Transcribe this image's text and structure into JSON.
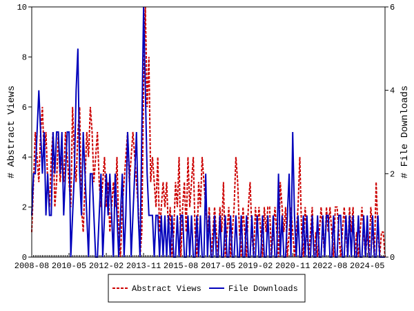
{
  "chart_data": {
    "type": "line",
    "y_label": "# Abstract Views",
    "y2_label": "# File Downloads",
    "x": [
      "2008-08",
      "2008-09",
      "2008-10",
      "2008-11",
      "2008-12",
      "2009-01",
      "2009-02",
      "2009-03",
      "2009-04",
      "2009-05",
      "2009-06",
      "2009-07",
      "2009-08",
      "2009-09",
      "2009-10",
      "2009-11",
      "2009-12",
      "2010-01",
      "2010-02",
      "2010-03",
      "2010-04",
      "2010-05",
      "2010-06",
      "2010-07",
      "2010-08",
      "2010-09",
      "2010-10",
      "2010-11",
      "2010-12",
      "2011-01",
      "2011-02",
      "2011-03",
      "2011-04",
      "2011-05",
      "2011-06",
      "2011-07",
      "2011-08",
      "2011-09",
      "2011-10",
      "2011-11",
      "2011-12",
      "2012-01",
      "2012-02",
      "2012-03",
      "2012-04",
      "2012-05",
      "2012-06",
      "2012-07",
      "2012-08",
      "2012-09",
      "2012-10",
      "2012-11",
      "2012-12",
      "2013-01",
      "2013-02",
      "2013-03",
      "2013-04",
      "2013-05",
      "2013-06",
      "2013-07",
      "2013-08",
      "2013-09",
      "2013-10",
      "2013-11",
      "2013-12",
      "2014-01",
      "2014-02",
      "2014-03",
      "2014-04",
      "2014-05",
      "2014-06",
      "2014-07",
      "2014-08",
      "2014-09",
      "2014-10",
      "2014-11",
      "2014-12",
      "2015-01",
      "2015-02",
      "2015-03",
      "2015-04",
      "2015-05",
      "2015-06",
      "2015-07",
      "2015-08",
      "2015-09",
      "2015-10",
      "2015-11",
      "2015-12",
      "2016-01",
      "2016-02",
      "2016-03",
      "2016-04",
      "2016-05",
      "2016-06",
      "2016-07",
      "2016-08",
      "2016-09",
      "2016-10",
      "2016-11",
      "2016-12",
      "2017-01",
      "2017-02",
      "2017-03",
      "2017-04",
      "2017-05",
      "2017-06",
      "2017-07",
      "2017-08",
      "2017-09",
      "2017-10",
      "2017-11",
      "2017-12",
      "2018-01",
      "2018-02",
      "2018-03",
      "2018-04",
      "2018-05",
      "2018-06",
      "2018-07",
      "2018-08",
      "2018-09",
      "2018-10",
      "2018-11",
      "2018-12",
      "2019-01",
      "2019-02",
      "2019-03",
      "2019-04",
      "2019-05",
      "2019-06",
      "2019-07",
      "2019-08",
      "2019-09",
      "2019-10",
      "2019-11",
      "2019-12",
      "2020-01",
      "2020-02",
      "2020-03",
      "2020-04",
      "2020-05",
      "2020-06",
      "2020-07",
      "2020-08",
      "2020-09",
      "2020-10",
      "2020-11",
      "2020-12",
      "2021-01",
      "2021-02",
      "2021-03",
      "2021-04",
      "2021-05",
      "2021-06",
      "2021-07",
      "2021-08",
      "2021-09",
      "2021-10",
      "2021-11",
      "2021-12",
      "2022-01",
      "2022-02",
      "2022-03",
      "2022-04",
      "2022-05",
      "2022-06",
      "2022-07",
      "2022-08",
      "2022-09",
      "2022-10",
      "2022-11",
      "2022-12",
      "2023-01",
      "2023-02",
      "2023-03",
      "2023-04",
      "2023-05",
      "2023-06",
      "2023-07",
      "2023-08",
      "2023-09",
      "2023-10",
      "2023-11",
      "2023-12",
      "2024-01",
      "2024-02",
      "2024-03",
      "2024-04",
      "2024-05",
      "2024-06",
      "2024-07",
      "2024-08",
      "2024-09",
      "2024-10",
      "2024-11",
      "2024-12",
      "2025-01",
      "2025-02",
      "2025-03"
    ],
    "xticks": [
      "2008-08",
      "2010-05",
      "2012-02",
      "2013-11",
      "2015-08",
      "2017-05",
      "2019-02",
      "2020-11",
      "2022-08",
      "2024-05"
    ],
    "ylim": [
      0,
      10
    ],
    "yticks": [
      0,
      2,
      4,
      6,
      8,
      10
    ],
    "y2lim": [
      0,
      6
    ],
    "y2ticks": [
      0,
      2,
      4,
      6
    ],
    "series": [
      {
        "name": "Abstract Views",
        "color": "#cc0000",
        "dash": true,
        "values": [
          1,
          3,
          5,
          4,
          3,
          5,
          6,
          4,
          5,
          3,
          2,
          4,
          5,
          2,
          3,
          5,
          3,
          4,
          3,
          5,
          4,
          3,
          2,
          6,
          4,
          3,
          5,
          6,
          2,
          1,
          3,
          5,
          4,
          6,
          5,
          3,
          4,
          5,
          3,
          2,
          3,
          4,
          2,
          3,
          1,
          2,
          3,
          2,
          4,
          1,
          0,
          2,
          3,
          4,
          5,
          3,
          4,
          5,
          4,
          3,
          2,
          0,
          1,
          7,
          10,
          6,
          8,
          3,
          4,
          3,
          2,
          4,
          1,
          2,
          3,
          2,
          3,
          1,
          2,
          0,
          1,
          3,
          2,
          4,
          0,
          2,
          3,
          1,
          4,
          2,
          3,
          4,
          1,
          0,
          3,
          2,
          4,
          3,
          2,
          1,
          2,
          0,
          1,
          2,
          1,
          0,
          2,
          1,
          3,
          0,
          1,
          2,
          0,
          1,
          2,
          4,
          3,
          1,
          0,
          2,
          1,
          0,
          2,
          3,
          1,
          0,
          2,
          1,
          2,
          1,
          0,
          2,
          1,
          2,
          2,
          0,
          1,
          2,
          1,
          0,
          3,
          2,
          1,
          2,
          0,
          1,
          2,
          1,
          0,
          1,
          2,
          4,
          1,
          0,
          2,
          1,
          0,
          1,
          2,
          0,
          1,
          0,
          1,
          2,
          1,
          0,
          2,
          1,
          2,
          1,
          0,
          2,
          2,
          1,
          0,
          1,
          2,
          1,
          0,
          2,
          1,
          2,
          0,
          1,
          0,
          1,
          2,
          1,
          0,
          1,
          0,
          2,
          1,
          0,
          3,
          1,
          0,
          1,
          1,
          0
        ]
      },
      {
        "name": "File Downloads",
        "color": "#0000bb",
        "dash": false,
        "axis": "y2",
        "values": [
          1,
          2,
          2,
          3,
          4,
          3,
          2,
          3,
          1,
          2,
          1,
          1,
          3,
          2,
          3,
          3,
          2,
          3,
          1,
          2,
          3,
          3,
          0,
          1,
          2,
          4,
          5,
          2,
          1,
          3,
          2,
          1,
          0,
          2,
          2,
          1,
          0,
          0,
          1,
          2,
          0,
          1,
          2,
          1,
          2,
          1,
          0,
          2,
          1,
          0,
          1,
          2,
          0,
          1,
          3,
          2,
          0,
          1,
          2,
          3,
          1,
          0,
          3,
          6,
          4,
          2,
          1,
          1,
          1,
          0,
          1,
          1,
          0,
          1,
          0,
          1,
          0,
          1,
          0,
          1,
          0,
          0,
          1,
          0,
          1,
          1,
          0,
          0,
          1,
          0,
          1,
          0,
          0,
          1,
          0,
          1,
          0,
          0,
          2,
          0,
          1,
          0,
          0,
          1,
          0,
          0,
          1,
          0,
          0,
          1,
          0,
          0,
          1,
          0,
          0,
          1,
          0,
          0,
          1,
          0,
          0,
          1,
          0,
          0,
          1,
          0,
          0,
          1,
          0,
          0,
          1,
          0,
          0,
          1,
          0,
          0,
          1,
          0,
          0,
          2,
          0,
          1,
          0,
          0,
          1,
          2,
          0,
          3,
          1,
          0,
          1,
          0,
          0,
          1,
          0,
          1,
          0,
          0,
          1,
          0,
          0,
          1,
          0,
          0,
          1,
          0,
          1,
          1,
          0,
          0,
          1,
          0,
          0,
          1,
          1,
          0,
          0,
          1,
          0,
          1,
          0,
          1,
          0,
          0,
          1,
          0,
          0,
          1,
          0,
          1,
          0,
          0,
          1,
          0,
          0,
          1,
          0,
          0,
          0,
          0
        ]
      }
    ]
  }
}
